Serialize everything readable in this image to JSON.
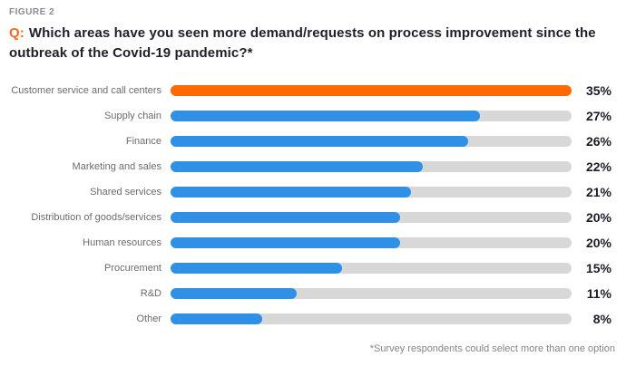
{
  "header": {
    "figure_label": "FIGURE 2",
    "q_prefix": "Q:",
    "title_rest": "Which areas have you seen more demand/requests on process improvement since the outbreak of the Covid-19 pandemic?*"
  },
  "footnote": "*Survey respondents could select more than one option",
  "colors": {
    "highlight_bar": "#FF6900",
    "default_bar": "#2F90E5",
    "track": "#D8D8D8",
    "accent_text": "#F4691E"
  },
  "chart_data": {
    "type": "bar",
    "orientation": "horizontal",
    "title": "Q: Which areas have you seen more demand/requests on process improvement since the outbreak of the Covid-19 pandemic?*",
    "categories": [
      "Customer service and call centers",
      "Supply chain",
      "Finance",
      "Marketing and sales",
      "Shared services",
      "Distribution of goods/services",
      "Human resources",
      "Procurement",
      "R&D",
      "Other"
    ],
    "values": [
      35,
      27,
      26,
      22,
      21,
      20,
      20,
      15,
      11,
      8
    ],
    "value_suffix": "%",
    "max_value": 35,
    "highlight_index": 0,
    "legend": "none",
    "grid": false,
    "footnote": "*Survey respondents could select more than one option"
  }
}
